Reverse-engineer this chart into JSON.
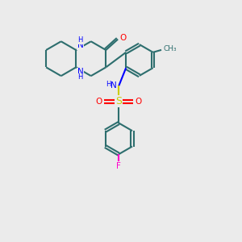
{
  "bg_color": "#ebebeb",
  "bond_color": "#2d6e6e",
  "N_color": "#0000ff",
  "O_color": "#ff0000",
  "S_color": "#cccc00",
  "F_color": "#ff00cc",
  "line_width": 1.5,
  "dbo": 0.055,
  "figsize": [
    3.0,
    3.0
  ],
  "dpi": 100,
  "xlim": [
    0,
    10
  ],
  "ylim": [
    0,
    10
  ]
}
